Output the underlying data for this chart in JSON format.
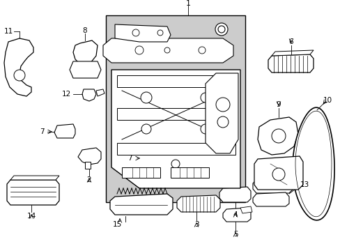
{
  "bg_color": "#ffffff",
  "lc": "#000000",
  "shade": "#cccccc",
  "figsize": [
    4.89,
    3.6
  ],
  "dpi": 100
}
